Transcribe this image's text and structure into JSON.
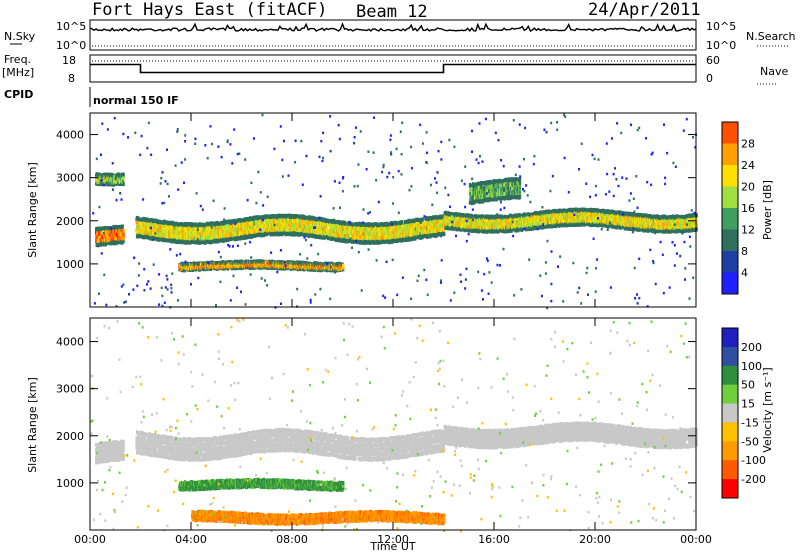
{
  "header": {
    "radar": "Fort Hays East (fitACF)",
    "beam": "Beam 12",
    "date": "24/Apr/2011"
  },
  "top_panels": {
    "nsky_label": "N.Sky",
    "nsky_ticks": [
      "10^5",
      "10^0"
    ],
    "nsearch_label": "N.Search",
    "nsearch_ticks": [
      "10^5",
      "10^0"
    ],
    "freq_label": "Freq.",
    "freq_unit": "[MHz]",
    "freq_ticks": [
      "18",
      "8"
    ],
    "nave_label": "Nave",
    "nave_ticks": [
      "60",
      "0"
    ],
    "cpid_label": "CPID",
    "cpid_value": "normal 150 IF"
  },
  "colors": {
    "power": [
      "#1f1fff",
      "#1f3fa0",
      "#2f6f5f",
      "#3f9f5f",
      "#9fdf3f",
      "#ffdf00",
      "#ffa000",
      "#ff5000",
      "#ff0000"
    ],
    "velocity": [
      "#ff0000",
      "#ff5a00",
      "#ff9a00",
      "#ffc000",
      "#c8c8c8",
      "#6fcf3f",
      "#2f8f3f",
      "#2f4fa0",
      "#2020c0"
    ],
    "ground": "#c8c8c8"
  },
  "chart_data": [
    {
      "type": "heatmap",
      "name": "power",
      "ylabel": "Slant Range [km]",
      "xlabel": "",
      "xlim": [
        0,
        24
      ],
      "ylim": [
        0,
        4500
      ],
      "yticks": [
        1000,
        2000,
        3000,
        4000
      ],
      "ytick_labels": [
        "1000",
        "2000",
        "3000",
        "4000"
      ],
      "colorbar": {
        "label": "Power [dB]",
        "ticks": [
          "4",
          "8",
          "12",
          "16",
          "20",
          "24",
          "28"
        ],
        "range": [
          0,
          30
        ]
      },
      "bands": [
        {
          "t0": 0.2,
          "t1": 1.3,
          "r": 1650,
          "w": 350,
          "value": 24
        },
        {
          "t0": 1.8,
          "t1": 14.0,
          "r": 1850,
          "w": 400,
          "value": 18
        },
        {
          "t0": 3.5,
          "t1": 10.0,
          "r": 1000,
          "w": 120,
          "value": 22
        },
        {
          "t0": 14.0,
          "t1": 24.0,
          "r": 2050,
          "w": 320,
          "value": 18
        },
        {
          "t0": 0.2,
          "t1": 1.3,
          "r": 3050,
          "w": 200,
          "value": 14
        },
        {
          "t0": 15.0,
          "t1": 17.0,
          "r": 2700,
          "w": 400,
          "value": 12
        }
      ]
    },
    {
      "type": "heatmap",
      "name": "velocity",
      "ylabel": "Slant Range [km]",
      "xlabel": "Time UT",
      "xlim": [
        0,
        24
      ],
      "ylim": [
        0,
        4500
      ],
      "xticks": [
        "00:00",
        "04:00",
        "08:00",
        "12:00",
        "16:00",
        "20:00",
        "00:00"
      ],
      "yticks": [
        1000,
        2000,
        3000,
        4000
      ],
      "ytick_labels": [
        "1000",
        "2000",
        "3000",
        "4000"
      ],
      "colorbar": {
        "label": "Velocity [m s⁻¹]",
        "ticks": [
          "-200",
          "-100",
          "-50",
          "-15",
          "15",
          "50",
          "100",
          "200"
        ]
      },
      "bands": [
        {
          "t0": 0.2,
          "t1": 1.3,
          "r": 1650,
          "w": 350,
          "value": 0
        },
        {
          "t0": 1.8,
          "t1": 14.0,
          "r": 1850,
          "w": 400,
          "value": 0
        },
        {
          "t0": 3.5,
          "t1": 10.0,
          "r": 1000,
          "w": 120,
          "value": 40
        },
        {
          "t0": 14.0,
          "t1": 24.0,
          "r": 2050,
          "w": 320,
          "value": 0
        },
        {
          "t0": 4.0,
          "t1": 14.0,
          "r": 300,
          "w": 150,
          "value": -60
        }
      ]
    },
    {
      "type": "line",
      "name": "frequency",
      "ylabel": "Freq. [MHz]",
      "ylim": [
        8,
        18
      ],
      "x": [
        0,
        2.0,
        2.0,
        14.0,
        14.0,
        24
      ],
      "y": [
        14.5,
        14.5,
        11.5,
        11.5,
        14.5,
        14.5
      ]
    }
  ],
  "axes": {
    "xlabel": "Time UT",
    "xticks": [
      "00:00",
      "04:00",
      "08:00",
      "12:00",
      "16:00",
      "20:00",
      "00:00"
    ]
  }
}
